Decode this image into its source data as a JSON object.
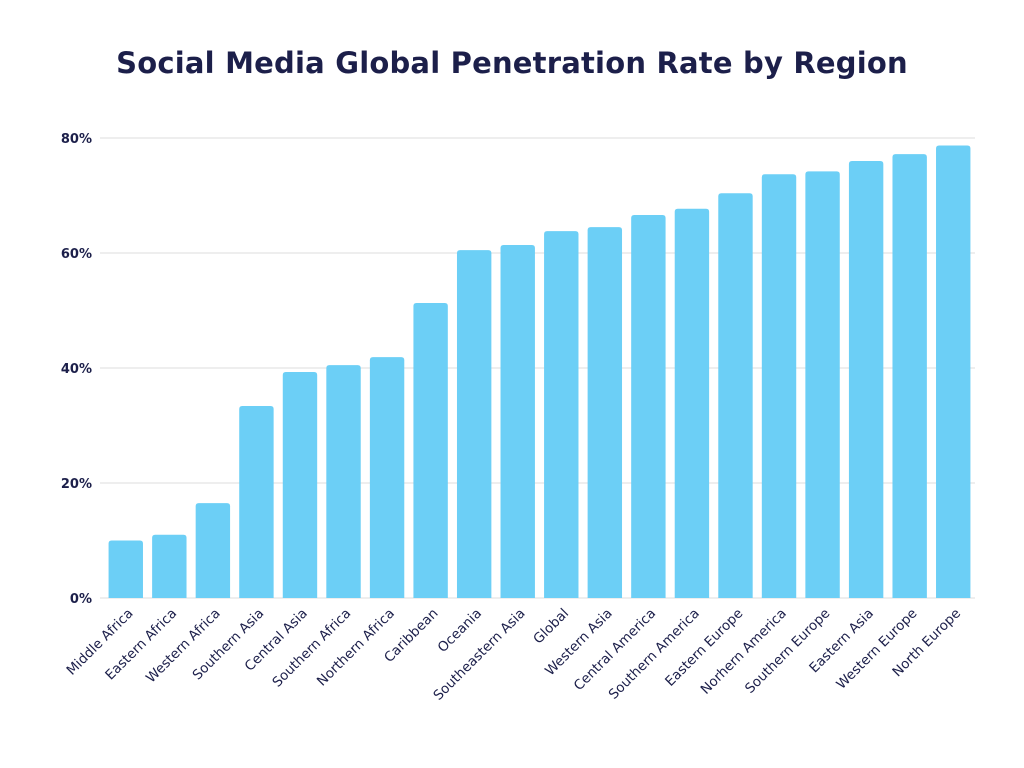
{
  "chart_data": {
    "type": "bar",
    "title": "Social Media Global Penetration Rate by Region",
    "xlabel": "",
    "ylabel": "",
    "ylim": [
      0,
      80
    ],
    "yticks": [
      "0%",
      "20%",
      "40%",
      "60%",
      "80%"
    ],
    "ytick_values": [
      0,
      20,
      40,
      60,
      80
    ],
    "grid": true,
    "bar_color": "#6ccff6",
    "categories": [
      "Middle Africa",
      "Eastern Africa",
      "Western Africa",
      "Southern Asia",
      "Central Asia",
      "Southern Africa",
      "Northern Africa",
      "Caribbean",
      "Oceania",
      "Southeastern Asia",
      "Global",
      "Western Asia",
      "Central America",
      "Southern America",
      "Eastern Europe",
      "Norhern America",
      "Southern Europe",
      "Eastern Asia",
      "Western Europe",
      "North Europe"
    ],
    "values": [
      10,
      11,
      16.5,
      33.4,
      39.3,
      40.5,
      41.9,
      51.3,
      60.5,
      61.4,
      63.8,
      64.5,
      66.6,
      67.7,
      70.4,
      73.7,
      74.2,
      76.0,
      77.2,
      78.7
    ]
  }
}
